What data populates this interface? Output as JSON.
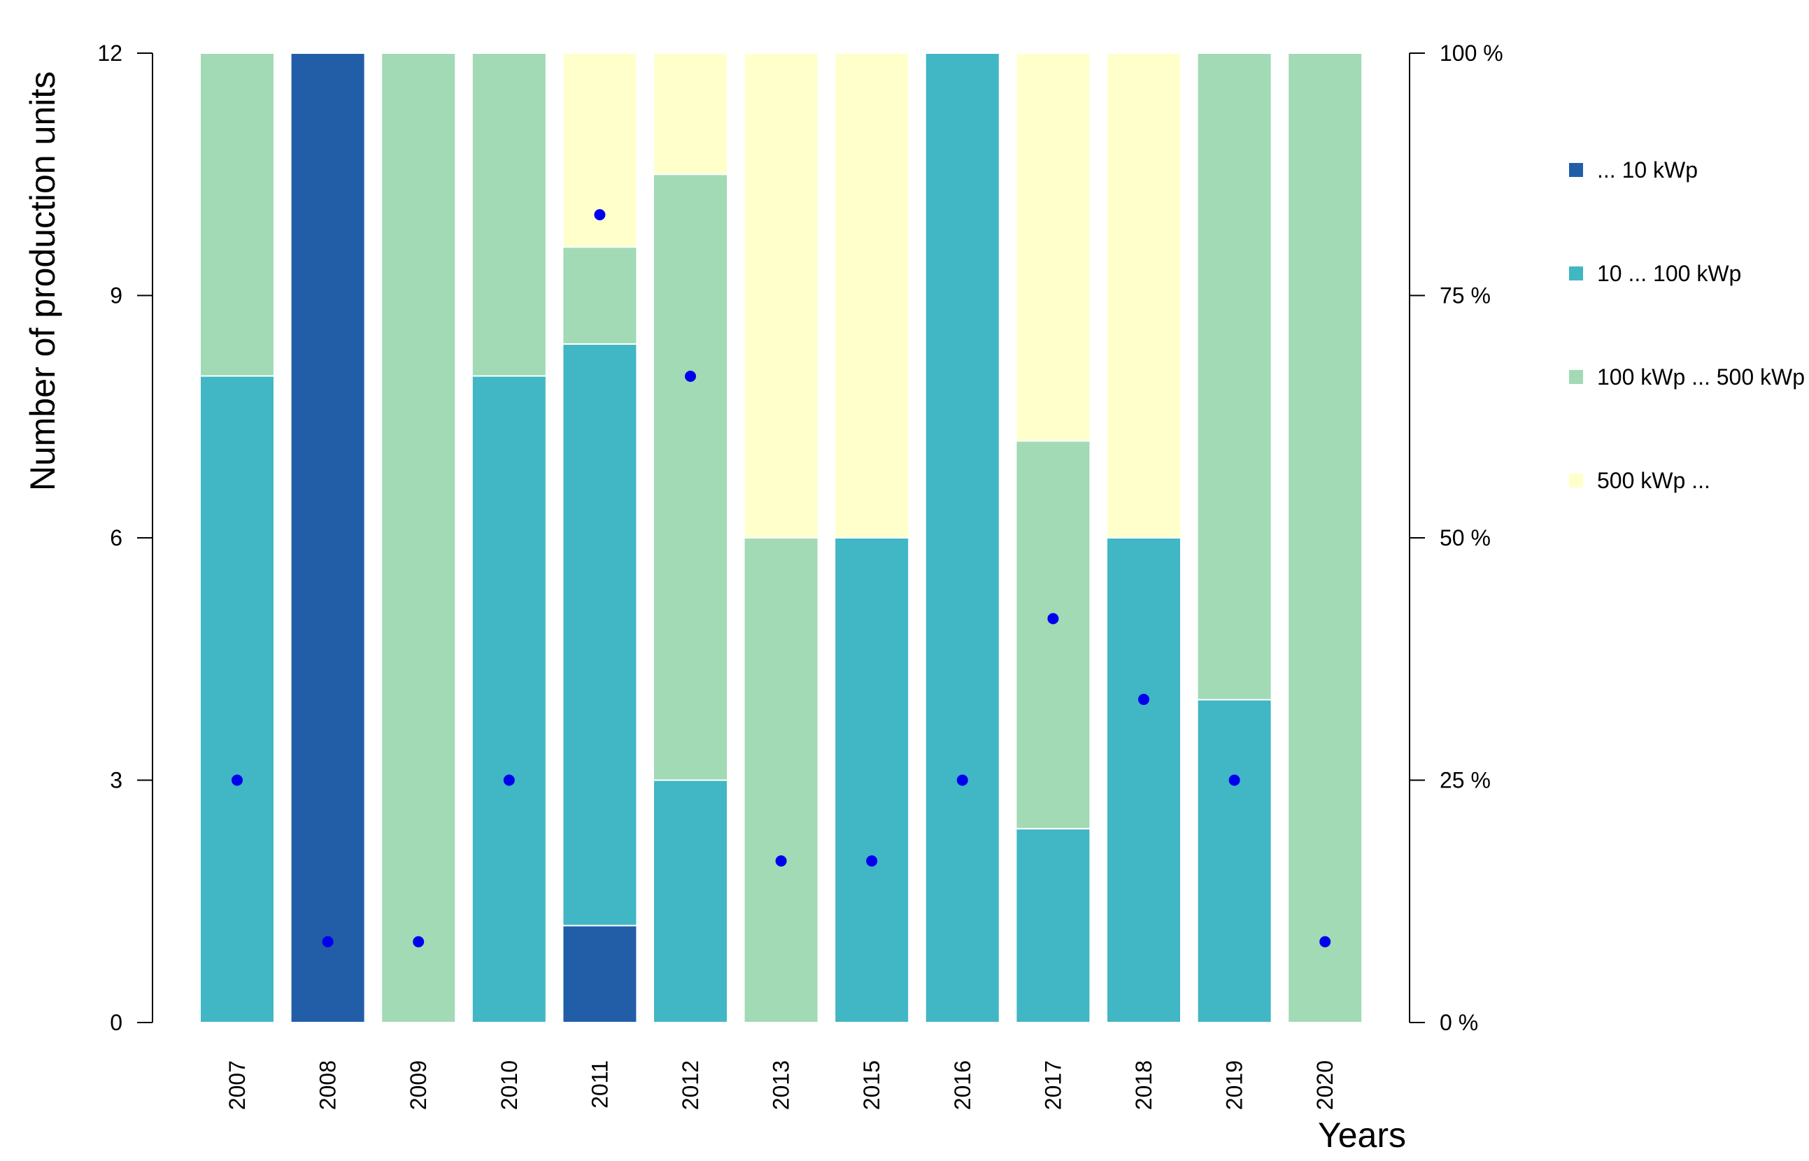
{
  "chart_data": {
    "type": "bar",
    "stacked": "percent",
    "title": "",
    "xlabel": "Years",
    "ylabel": "Number of production units",
    "ylim": [
      0,
      12
    ],
    "y_ticks": [
      0,
      3,
      6,
      9,
      12
    ],
    "y2lim": [
      0,
      100
    ],
    "y2_ticks": [
      "0 %",
      "25 %",
      "50 %",
      "75 %",
      "100 %"
    ],
    "categories": [
      "2007",
      "2008",
      "2009",
      "2010",
      "2011",
      "2012",
      "2013",
      "2015",
      "2016",
      "2017",
      "2018",
      "2019",
      "2020"
    ],
    "series": [
      {
        "name": "... 10 kWp",
        "color": "#225ea8",
        "values": [
          0,
          100,
          0,
          0,
          10,
          0,
          0,
          0,
          0,
          0,
          0,
          0,
          0
        ]
      },
      {
        "name": "10 ... 100 kWp",
        "color": "#41b6c4",
        "values": [
          66.7,
          0,
          0,
          66.7,
          60,
          25,
          0,
          50,
          100,
          20,
          50,
          33.3,
          0
        ]
      },
      {
        "name": "100 kWp ... 500 kWp",
        "color": "#a1dab4",
        "values": [
          33.3,
          0,
          100,
          33.3,
          10,
          62.5,
          50,
          0,
          0,
          40,
          0,
          66.7,
          100
        ]
      },
      {
        "name": "500 kWp ...",
        "color": "#ffffcc",
        "values": [
          0,
          0,
          0,
          0,
          20,
          12.5,
          50,
          50,
          0,
          40,
          50,
          0,
          0
        ]
      }
    ],
    "points": {
      "name": "Number of production units",
      "color": "#0000ee",
      "values": [
        3,
        1,
        1,
        3,
        10,
        8,
        2,
        2,
        3,
        5,
        4,
        3,
        1
      ]
    },
    "legend_position": "right"
  }
}
